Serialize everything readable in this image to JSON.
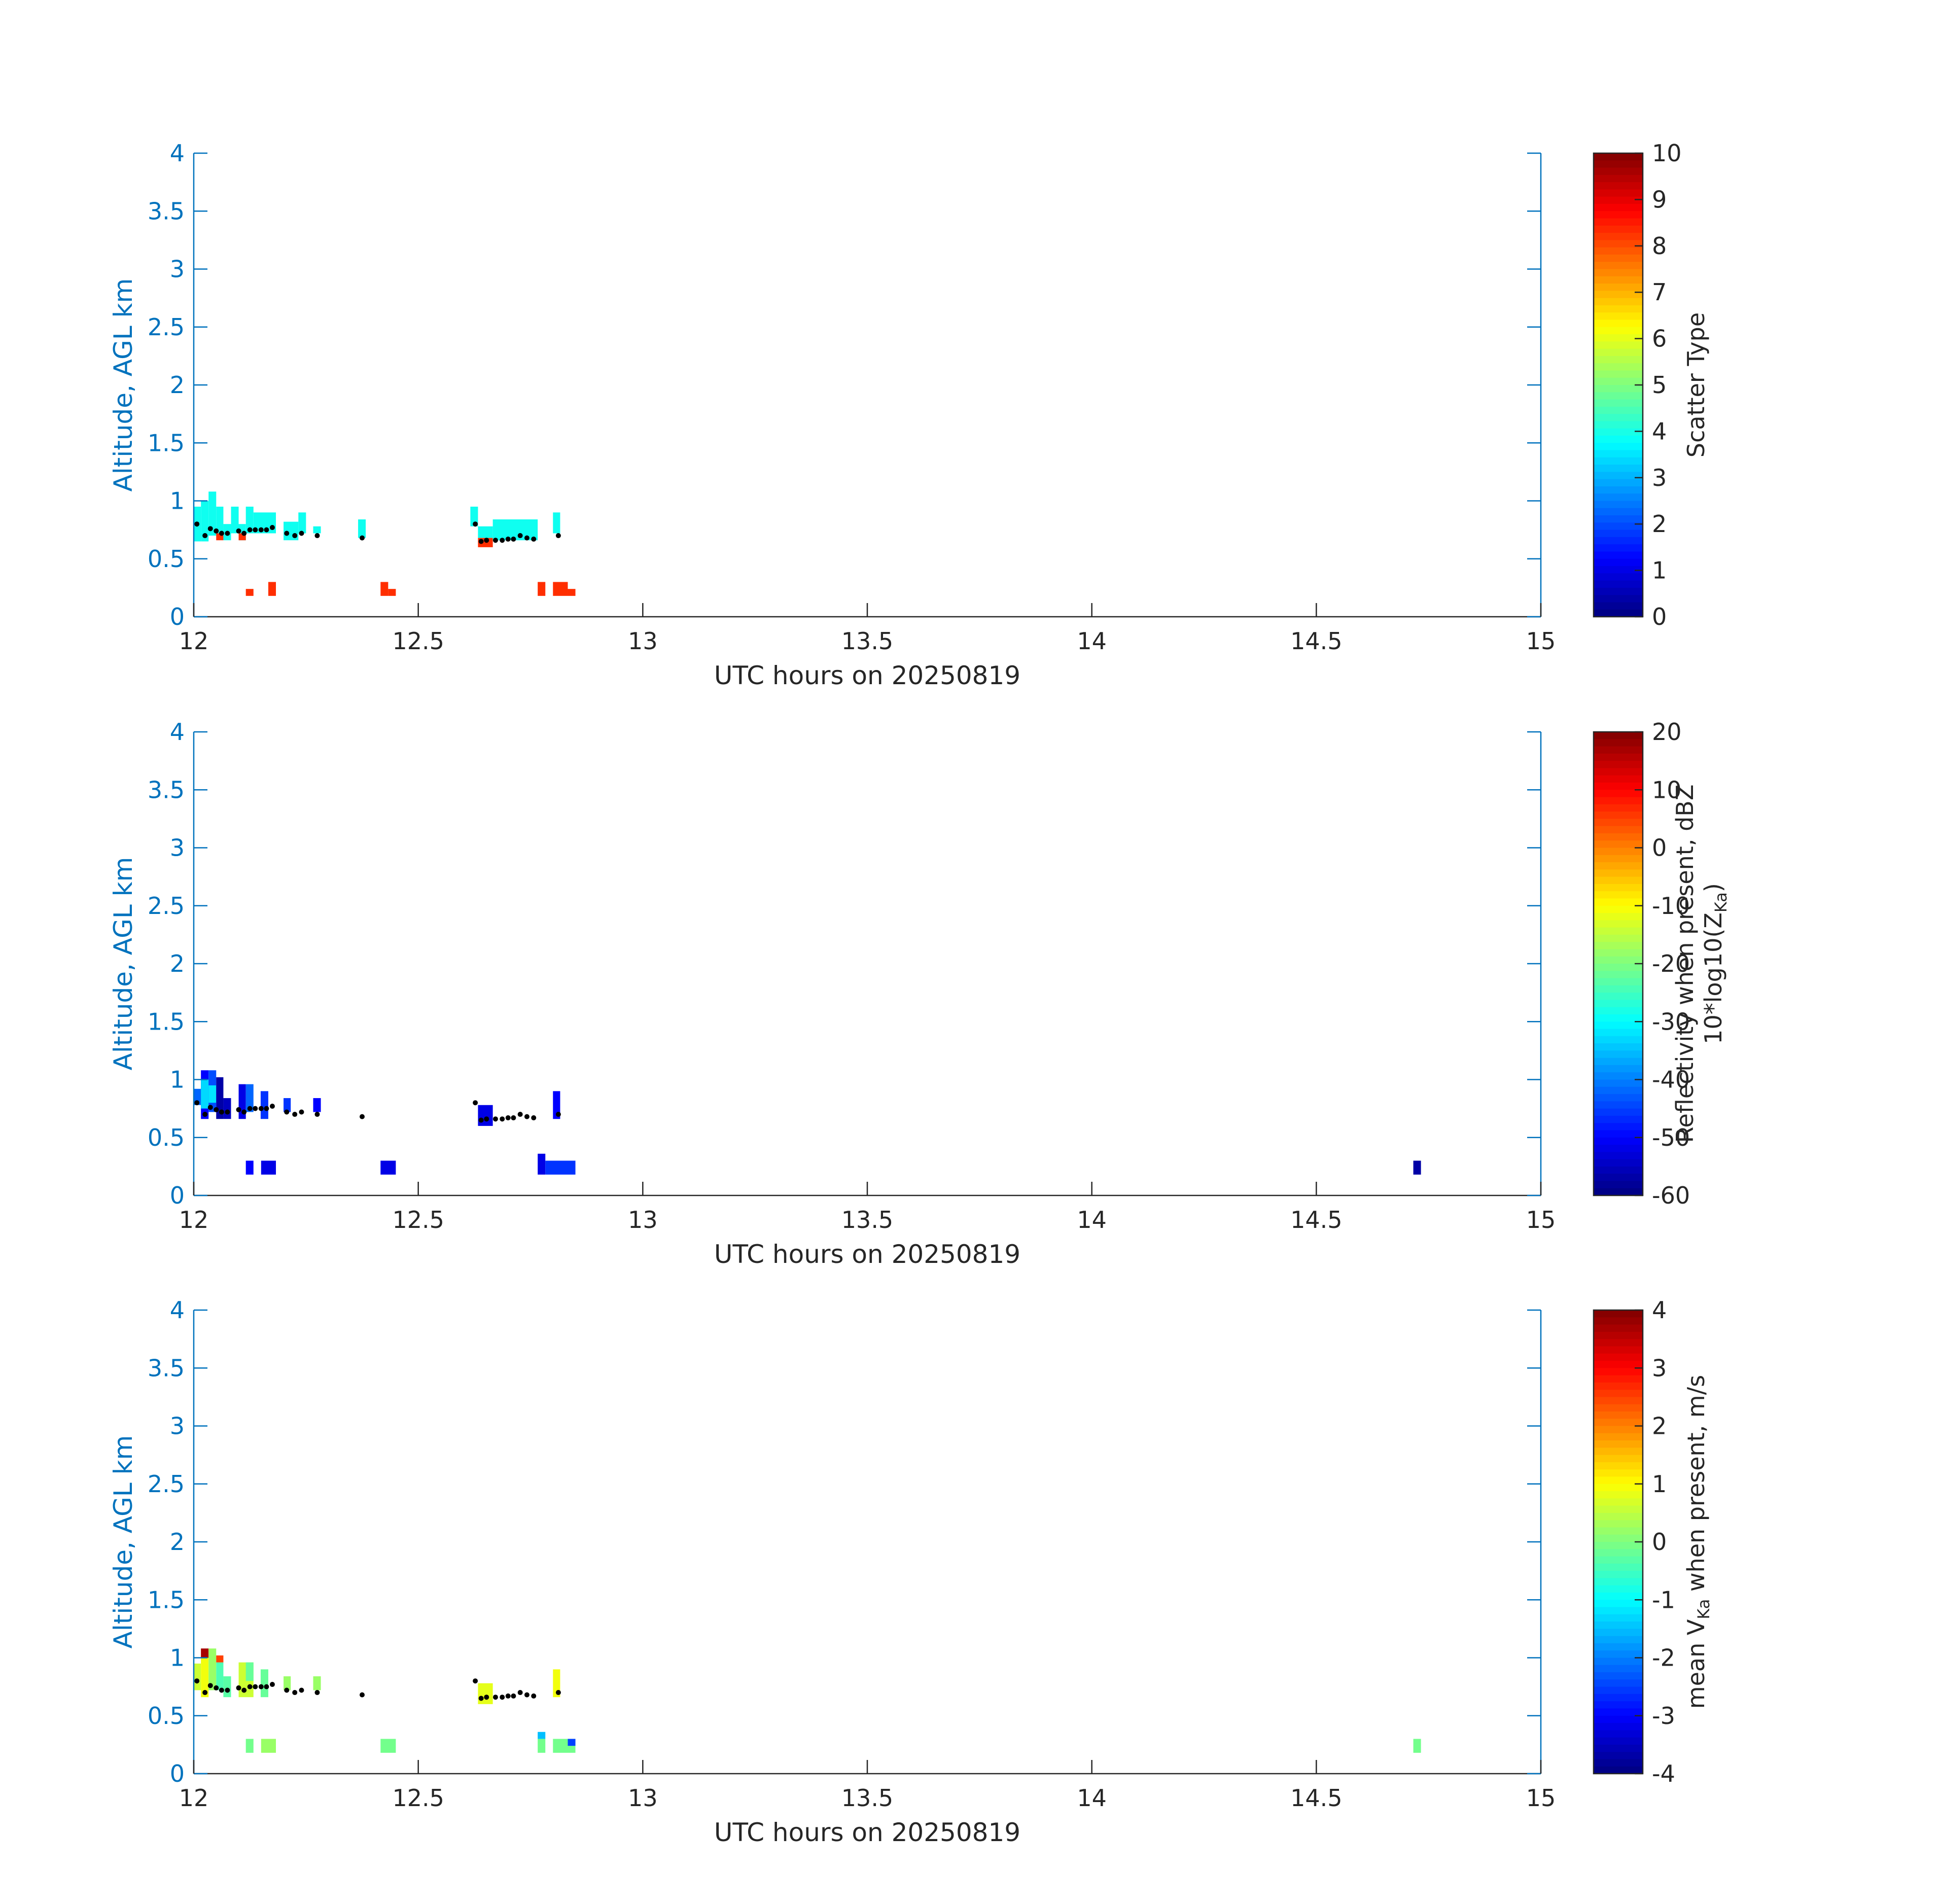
{
  "colormap": "jet",
  "axis_color": "#0072BD",
  "dot_color": "#000000",
  "chart_data": [
    {
      "type": "heatmap",
      "panel": "top",
      "xlabel": "UTC hours on 20250819",
      "ylabel": "Altitude, AGL km",
      "xlim": [
        12,
        15
      ],
      "ylim": [
        0,
        4
      ],
      "xticks": [
        "12",
        "12.5",
        "13",
        "13.5",
        "14",
        "14.5",
        "15"
      ],
      "yticks": [
        "0",
        "0.5",
        "1",
        "1.5",
        "2",
        "2.5",
        "3",
        "3.5",
        "4"
      ],
      "colorbar": {
        "label": "Scatter Type",
        "label_line2": "",
        "label_sub": "",
        "label_tail": "",
        "range": [
          0,
          10
        ],
        "ticks": [
          "0",
          "1",
          "2",
          "3",
          "4",
          "5",
          "6",
          "7",
          "8",
          "9",
          "10"
        ]
      },
      "cells": [
        {
          "t0": 12.0,
          "t1": 12.016,
          "z0": 0.65,
          "z1": 0.95,
          "v": 3.9
        },
        {
          "t0": 12.016,
          "t1": 12.033,
          "z0": 0.65,
          "z1": 1.0,
          "v": 3.9
        },
        {
          "t0": 12.033,
          "t1": 12.05,
          "z0": 0.7,
          "z1": 1.08,
          "v": 3.9
        },
        {
          "t0": 12.05,
          "t1": 12.066,
          "z0": 0.7,
          "z1": 0.95,
          "v": 3.9
        },
        {
          "t0": 12.05,
          "t1": 12.066,
          "z0": 0.66,
          "z1": 0.72,
          "v": 8.3
        },
        {
          "t0": 12.066,
          "t1": 12.083,
          "z0": 0.66,
          "z1": 0.8,
          "v": 3.9
        },
        {
          "t0": 12.083,
          "t1": 12.1,
          "z0": 0.72,
          "z1": 0.95,
          "v": 3.9
        },
        {
          "t0": 12.1,
          "t1": 12.116,
          "z0": 0.66,
          "z1": 0.8,
          "v": 3.9
        },
        {
          "t0": 12.1,
          "t1": 12.116,
          "z0": 0.66,
          "z1": 0.72,
          "v": 8.3
        },
        {
          "t0": 12.116,
          "t1": 12.133,
          "z0": 0.72,
          "z1": 0.95,
          "v": 3.9
        },
        {
          "t0": 12.133,
          "t1": 12.183,
          "z0": 0.72,
          "z1": 0.9,
          "v": 3.9
        },
        {
          "t0": 12.2,
          "t1": 12.233,
          "z0": 0.66,
          "z1": 0.82,
          "v": 3.9
        },
        {
          "t0": 12.233,
          "t1": 12.25,
          "z0": 0.72,
          "z1": 0.9,
          "v": 3.9
        },
        {
          "t0": 12.266,
          "t1": 12.283,
          "z0": 0.72,
          "z1": 0.78,
          "v": 3.9
        },
        {
          "t0": 12.366,
          "t1": 12.383,
          "z0": 0.68,
          "z1": 0.84,
          "v": 3.9
        },
        {
          "t0": 12.616,
          "t1": 12.633,
          "z0": 0.78,
          "z1": 0.95,
          "v": 3.9
        },
        {
          "t0": 12.633,
          "t1": 12.666,
          "z0": 0.68,
          "z1": 0.78,
          "v": 3.9
        },
        {
          "t0": 12.633,
          "t1": 12.666,
          "z0": 0.6,
          "z1": 0.68,
          "v": 8.3
        },
        {
          "t0": 12.666,
          "t1": 12.766,
          "z0": 0.66,
          "z1": 0.84,
          "v": 3.9
        },
        {
          "t0": 12.8,
          "t1": 12.816,
          "z0": 0.72,
          "z1": 0.9,
          "v": 3.9
        },
        {
          "t0": 12.116,
          "t1": 12.133,
          "z0": 0.18,
          "z1": 0.24,
          "v": 8.3
        },
        {
          "t0": 12.166,
          "t1": 12.183,
          "z0": 0.18,
          "z1": 0.3,
          "v": 8.3
        },
        {
          "t0": 12.416,
          "t1": 12.433,
          "z0": 0.18,
          "z1": 0.3,
          "v": 8.3
        },
        {
          "t0": 12.433,
          "t1": 12.45,
          "z0": 0.18,
          "z1": 0.24,
          "v": 8.3
        },
        {
          "t0": 12.766,
          "t1": 12.783,
          "z0": 0.18,
          "z1": 0.3,
          "v": 8.3
        },
        {
          "t0": 12.8,
          "t1": 12.833,
          "z0": 0.18,
          "z1": 0.3,
          "v": 8.3
        },
        {
          "t0": 12.833,
          "t1": 12.85,
          "z0": 0.18,
          "z1": 0.24,
          "v": 8.3
        }
      ]
    },
    {
      "type": "heatmap",
      "panel": "middle",
      "xlabel": "UTC hours on 20250819",
      "ylabel": "Altitude, AGL km",
      "xlim": [
        12,
        15
      ],
      "ylim": [
        0,
        4
      ],
      "xticks": [
        "12",
        "12.5",
        "13",
        "13.5",
        "14",
        "14.5",
        "15"
      ],
      "yticks": [
        "0",
        "0.5",
        "1",
        "1.5",
        "2",
        "2.5",
        "3",
        "3.5",
        "4"
      ],
      "colorbar": {
        "label": "Reflectivity when present, dBZ",
        "label_line2": "10*log10(Z",
        "label_sub": "Ka",
        "label_tail": ")",
        "range": [
          -60,
          20
        ],
        "ticks": [
          "-60",
          "-50",
          "-40",
          "-30",
          "-20",
          "-10",
          "0",
          "10",
          "20"
        ]
      },
      "cells": [
        {
          "t0": 12.0,
          "t1": 12.016,
          "z0": 0.78,
          "z1": 0.92,
          "v": -42
        },
        {
          "t0": 12.016,
          "t1": 12.033,
          "z0": 0.66,
          "z1": 1.08,
          "v": -50
        },
        {
          "t0": 12.016,
          "t1": 12.033,
          "z0": 0.75,
          "z1": 1.0,
          "v": -33
        },
        {
          "t0": 12.033,
          "t1": 12.05,
          "z0": 0.72,
          "z1": 1.08,
          "v": -44
        },
        {
          "t0": 12.033,
          "t1": 12.05,
          "z0": 0.8,
          "z1": 0.95,
          "v": -32
        },
        {
          "t0": 12.05,
          "t1": 12.066,
          "z0": 0.66,
          "z1": 1.02,
          "v": -57
        },
        {
          "t0": 12.066,
          "t1": 12.083,
          "z0": 0.66,
          "z1": 0.84,
          "v": -55
        },
        {
          "t0": 12.1,
          "t1": 12.116,
          "z0": 0.66,
          "z1": 0.96,
          "v": -52
        },
        {
          "t0": 12.116,
          "t1": 12.133,
          "z0": 0.72,
          "z1": 0.96,
          "v": -42
        },
        {
          "t0": 12.149,
          "t1": 12.166,
          "z0": 0.66,
          "z1": 0.9,
          "v": -46
        },
        {
          "t0": 12.2,
          "t1": 12.216,
          "z0": 0.72,
          "z1": 0.84,
          "v": -46
        },
        {
          "t0": 12.266,
          "t1": 12.283,
          "z0": 0.72,
          "z1": 0.84,
          "v": -50
        },
        {
          "t0": 12.633,
          "t1": 12.666,
          "z0": 0.6,
          "z1": 0.78,
          "v": -52
        },
        {
          "t0": 12.8,
          "t1": 12.816,
          "z0": 0.66,
          "z1": 0.9,
          "v": -50
        },
        {
          "t0": 12.116,
          "t1": 12.133,
          "z0": 0.18,
          "z1": 0.3,
          "v": -50
        },
        {
          "t0": 12.15,
          "t1": 12.183,
          "z0": 0.18,
          "z1": 0.3,
          "v": -52
        },
        {
          "t0": 12.416,
          "t1": 12.45,
          "z0": 0.18,
          "z1": 0.3,
          "v": -52
        },
        {
          "t0": 12.766,
          "t1": 12.783,
          "z0": 0.18,
          "z1": 0.36,
          "v": -52
        },
        {
          "t0": 12.783,
          "t1": 12.85,
          "z0": 0.18,
          "z1": 0.3,
          "v": -46
        },
        {
          "t0": 14.716,
          "t1": 14.733,
          "z0": 0.18,
          "z1": 0.3,
          "v": -57
        }
      ]
    },
    {
      "type": "heatmap",
      "panel": "bottom",
      "xlabel": "UTC hours on 20250819",
      "ylabel": "Altitude, AGL km",
      "xlim": [
        12,
        15
      ],
      "ylim": [
        0,
        4
      ],
      "xticks": [
        "12",
        "12.5",
        "13",
        "13.5",
        "14",
        "14.5",
        "15"
      ],
      "yticks": [
        "0",
        "0.5",
        "1",
        "1.5",
        "2",
        "2.5",
        "3",
        "3.5",
        "4"
      ],
      "colorbar": {
        "label": "mean V",
        "label_line2": "",
        "label_sub": "Ka",
        "label_tail": " when present, m/s",
        "range": [
          -4,
          4
        ],
        "ticks": [
          "-4",
          "-3",
          "-2",
          "-1",
          "0",
          "1",
          "2",
          "3",
          "4"
        ]
      },
      "cells": [
        {
          "t0": 12.0,
          "t1": 12.016,
          "z0": 0.72,
          "z1": 0.95,
          "v": 0.6
        },
        {
          "t0": 12.016,
          "t1": 12.033,
          "z0": 0.66,
          "z1": 1.02,
          "v": 0.9
        },
        {
          "t0": 12.016,
          "t1": 12.033,
          "z0": 1.0,
          "z1": 1.08,
          "v": 3.7
        },
        {
          "t0": 12.033,
          "t1": 12.05,
          "z0": 0.72,
          "z1": 1.08,
          "v": 0.2
        },
        {
          "t0": 12.05,
          "t1": 12.066,
          "z0": 0.72,
          "z1": 0.96,
          "v": -0.4
        },
        {
          "t0": 12.05,
          "t1": 12.066,
          "z0": 0.96,
          "z1": 1.02,
          "v": 2.5
        },
        {
          "t0": 12.066,
          "t1": 12.083,
          "z0": 0.66,
          "z1": 0.84,
          "v": -0.3
        },
        {
          "t0": 12.1,
          "t1": 12.133,
          "z0": 0.66,
          "z1": 0.96,
          "v": 0.6
        },
        {
          "t0": 12.116,
          "t1": 12.133,
          "z0": 0.8,
          "z1": 0.96,
          "v": -0.2
        },
        {
          "t0": 12.149,
          "t1": 12.166,
          "z0": 0.66,
          "z1": 0.9,
          "v": -0.2
        },
        {
          "t0": 12.2,
          "t1": 12.216,
          "z0": 0.72,
          "z1": 0.84,
          "v": 0.2
        },
        {
          "t0": 12.266,
          "t1": 12.283,
          "z0": 0.72,
          "z1": 0.84,
          "v": 0.2
        },
        {
          "t0": 12.633,
          "t1": 12.666,
          "z0": 0.6,
          "z1": 0.78,
          "v": 0.8
        },
        {
          "t0": 12.8,
          "t1": 12.816,
          "z0": 0.66,
          "z1": 0.9,
          "v": 0.9
        },
        {
          "t0": 12.116,
          "t1": 12.133,
          "z0": 0.18,
          "z1": 0.3,
          "v": -0.1
        },
        {
          "t0": 12.15,
          "t1": 12.183,
          "z0": 0.18,
          "z1": 0.3,
          "v": 0.2
        },
        {
          "t0": 12.416,
          "t1": 12.45,
          "z0": 0.18,
          "z1": 0.3,
          "v": -0.1
        },
        {
          "t0": 12.766,
          "t1": 12.783,
          "z0": 0.18,
          "z1": 0.3,
          "v": -0.1
        },
        {
          "t0": 12.766,
          "t1": 12.783,
          "z0": 0.3,
          "z1": 0.36,
          "v": -1.5
        },
        {
          "t0": 12.8,
          "t1": 12.833,
          "z0": 0.18,
          "z1": 0.3,
          "v": -0.1
        },
        {
          "t0": 12.833,
          "t1": 12.85,
          "z0": 0.18,
          "z1": 0.3,
          "v": -0.1
        },
        {
          "t0": 12.833,
          "t1": 12.85,
          "z0": 0.24,
          "z1": 0.3,
          "v": -2.5
        },
        {
          "t0": 14.716,
          "t1": 14.733,
          "z0": 0.18,
          "z1": 0.3,
          "v": -0.1
        }
      ]
    }
  ],
  "cloud_base_dots": [
    {
      "t": 12.007,
      "z": 0.8
    },
    {
      "t": 12.025,
      "z": 0.7
    },
    {
      "t": 12.037,
      "z": 0.76
    },
    {
      "t": 12.05,
      "z": 0.74
    },
    {
      "t": 12.062,
      "z": 0.72
    },
    {
      "t": 12.075,
      "z": 0.72
    },
    {
      "t": 12.1,
      "z": 0.74
    },
    {
      "t": 12.112,
      "z": 0.72
    },
    {
      "t": 12.125,
      "z": 0.75
    },
    {
      "t": 12.137,
      "z": 0.75
    },
    {
      "t": 12.15,
      "z": 0.75
    },
    {
      "t": 12.162,
      "z": 0.75
    },
    {
      "t": 12.175,
      "z": 0.77
    },
    {
      "t": 12.207,
      "z": 0.72
    },
    {
      "t": 12.225,
      "z": 0.7
    },
    {
      "t": 12.24,
      "z": 0.72
    },
    {
      "t": 12.275,
      "z": 0.7
    },
    {
      "t": 12.375,
      "z": 0.68
    },
    {
      "t": 12.627,
      "z": 0.8
    },
    {
      "t": 12.64,
      "z": 0.65
    },
    {
      "t": 12.652,
      "z": 0.66
    },
    {
      "t": 12.672,
      "z": 0.66
    },
    {
      "t": 12.687,
      "z": 0.66
    },
    {
      "t": 12.7,
      "z": 0.67
    },
    {
      "t": 12.712,
      "z": 0.67
    },
    {
      "t": 12.727,
      "z": 0.7
    },
    {
      "t": 12.742,
      "z": 0.68
    },
    {
      "t": 12.757,
      "z": 0.67
    },
    {
      "t": 12.812,
      "z": 0.7
    }
  ]
}
